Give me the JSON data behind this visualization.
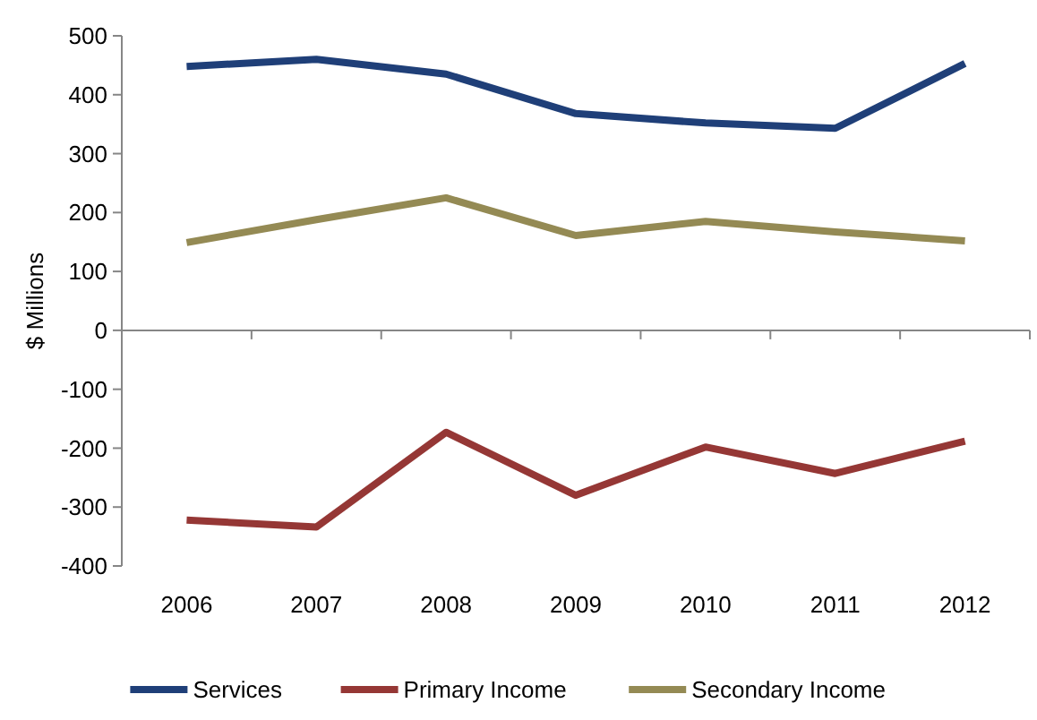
{
  "chart_data": {
    "type": "line",
    "ylabel": "$ Millions",
    "categories": [
      "2006",
      "2007",
      "2008",
      "2009",
      "2010",
      "2011",
      "2012"
    ],
    "series": [
      {
        "name": "Services",
        "color": "#1f3f78",
        "values": [
          448,
          460,
          435,
          368,
          352,
          343,
          453
        ]
      },
      {
        "name": "Primary Income",
        "color": "#953735",
        "values": [
          -322,
          -334,
          -173,
          -280,
          -198,
          -243,
          -188
        ]
      },
      {
        "name": "Secondary Income",
        "color": "#948a54",
        "values": [
          149,
          188,
          225,
          161,
          185,
          167,
          152
        ]
      }
    ],
    "ylim": [
      -400,
      500
    ],
    "yticks": [
      -400,
      -300,
      -200,
      -100,
      0,
      100,
      200,
      300,
      400,
      500
    ],
    "legend": "bottom",
    "marker": "none",
    "line_style": "solid"
  }
}
